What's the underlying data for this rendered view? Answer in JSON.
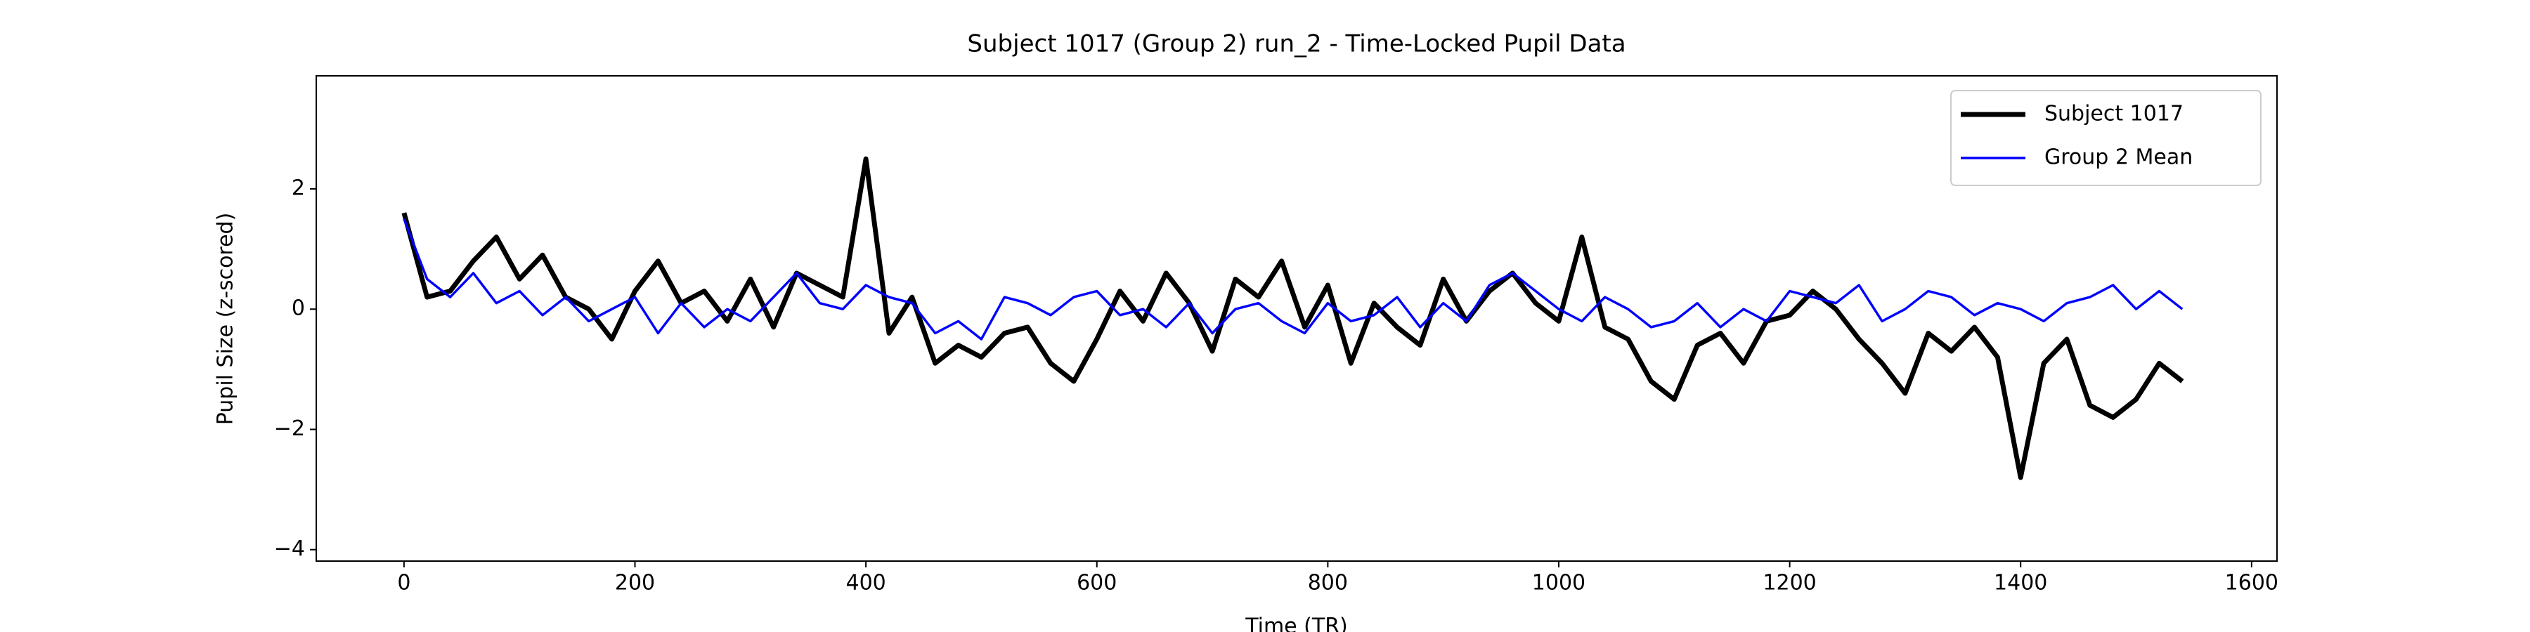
{
  "chart_data": {
    "type": "line",
    "title": "Subject 1017 (Group 2) run_2 - Time-Locked Pupil Data",
    "xlabel": "Time (TR)",
    "ylabel": "Pupil Size (z-scored)",
    "x": [
      0,
      20,
      40,
      60,
      80,
      100,
      120,
      140,
      160,
      180,
      200,
      220,
      240,
      260,
      280,
      300,
      320,
      340,
      360,
      380,
      400,
      420,
      440,
      460,
      480,
      500,
      520,
      540,
      560,
      580,
      600,
      620,
      640,
      660,
      680,
      700,
      720,
      740,
      760,
      780,
      800,
      820,
      840,
      860,
      880,
      900,
      920,
      940,
      960,
      980,
      1000,
      1020,
      1040,
      1060,
      1080,
      1100,
      1120,
      1140,
      1160,
      1180,
      1200,
      1220,
      1240,
      1260,
      1280,
      1300,
      1320,
      1340,
      1360,
      1380,
      1400,
      1420,
      1440,
      1460,
      1480,
      1500,
      1520,
      1540
    ],
    "series": [
      {
        "name": "Subject 1017",
        "color": "#000000",
        "width": 3,
        "values": [
          1.6,
          0.2,
          0.3,
          0.8,
          1.2,
          0.5,
          0.9,
          0.2,
          0.0,
          -0.5,
          0.3,
          0.8,
          0.1,
          0.3,
          -0.2,
          0.5,
          -0.3,
          0.6,
          0.4,
          0.2,
          2.5,
          -0.4,
          0.2,
          -0.9,
          -0.6,
          -0.8,
          -0.4,
          -0.3,
          -0.9,
          -1.2,
          -0.5,
          0.3,
          -0.2,
          0.6,
          0.1,
          -0.7,
          0.5,
          0.2,
          0.8,
          -0.3,
          0.4,
          -0.9,
          0.1,
          -0.3,
          -0.6,
          0.5,
          -0.2,
          0.3,
          0.6,
          0.1,
          -0.2,
          1.2,
          -0.3,
          -0.5,
          -1.2,
          -1.5,
          -0.6,
          -0.4,
          -0.9,
          -0.2,
          -0.1,
          0.3,
          0.0,
          -0.5,
          -0.9,
          -1.4,
          -0.4,
          -0.7,
          -0.3,
          -0.8,
          -2.8,
          -0.9,
          -0.5,
          -1.6,
          -1.8,
          -1.5,
          -0.9,
          -1.2
        ]
      },
      {
        "name": "Group 2 Mean",
        "color": "#0000ff",
        "width": 1.5,
        "values": [
          1.5,
          0.5,
          0.2,
          0.6,
          0.1,
          0.3,
          -0.1,
          0.2,
          -0.2,
          0.0,
          0.2,
          -0.4,
          0.1,
          -0.3,
          0.0,
          -0.2,
          0.2,
          0.6,
          0.1,
          0.0,
          0.4,
          0.2,
          0.1,
          -0.4,
          -0.2,
          -0.5,
          0.2,
          0.1,
          -0.1,
          0.2,
          0.3,
          -0.1,
          0.0,
          -0.3,
          0.1,
          -0.4,
          0.0,
          0.1,
          -0.2,
          -0.4,
          0.1,
          -0.2,
          -0.1,
          0.2,
          -0.3,
          0.1,
          -0.2,
          0.4,
          0.6,
          0.3,
          0.0,
          -0.2,
          0.2,
          0.0,
          -0.3,
          -0.2,
          0.1,
          -0.3,
          0.0,
          -0.2,
          0.3,
          0.2,
          0.1,
          0.4,
          -0.2,
          0.0,
          0.3,
          0.2,
          -0.1,
          0.1,
          0.0,
          -0.2,
          0.1,
          0.2,
          0.4,
          0.0,
          0.3,
          0.0
        ]
      }
    ],
    "xlim": [
      -76,
      1622
    ],
    "ylim": [
      -4.19,
      3.88
    ],
    "xticks": [
      0,
      200,
      400,
      600,
      800,
      1000,
      1200,
      1400,
      1600
    ],
    "yticks": [
      {
        "value": -4,
        "label": "−4"
      },
      {
        "value": -2,
        "label": "−2"
      },
      0,
      2
    ],
    "legend": "upper right",
    "grid": false
  }
}
